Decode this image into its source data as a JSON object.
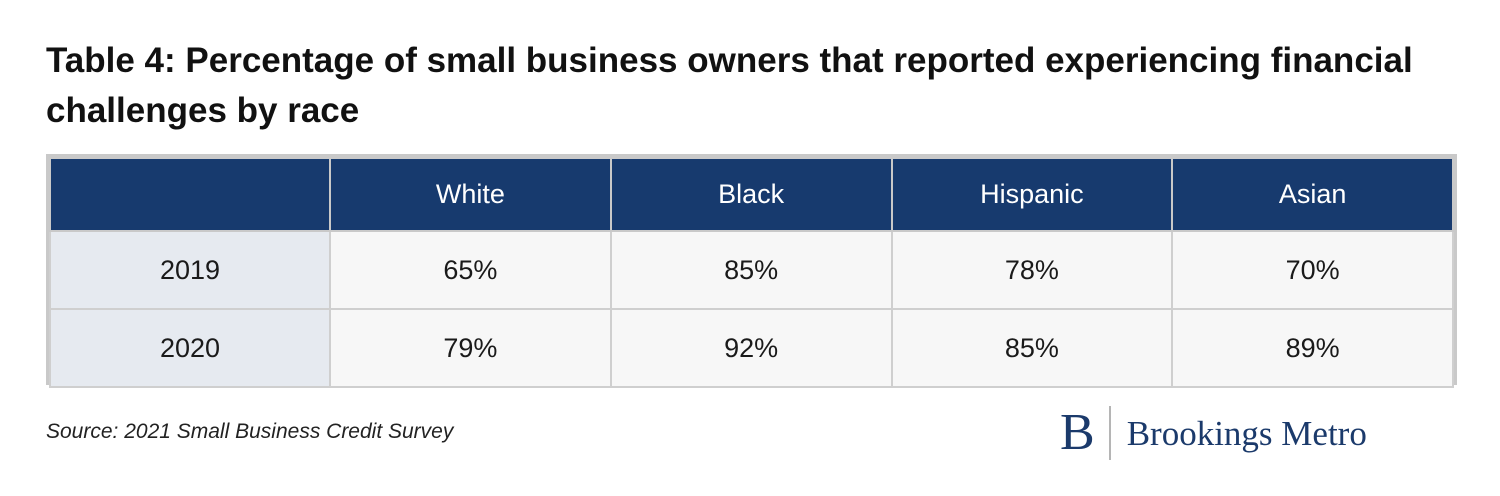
{
  "chart_data": {
    "type": "table",
    "title": "Table 4: Percentage of small business owners that reported experiencing financial challenges by race",
    "columns": [
      "",
      "White",
      "Black",
      "Hispanic",
      "Asian"
    ],
    "rows": [
      {
        "label": "2019",
        "values": [
          "65%",
          "85%",
          "78%",
          "70%"
        ]
      },
      {
        "label": "2020",
        "values": [
          "79%",
          "92%",
          "85%",
          "89%"
        ]
      }
    ],
    "header_color": "#173a6e",
    "row_label_color": "#e6eaf0"
  },
  "footer": {
    "source": "Source: 2021 Small Business Credit Survey",
    "brand_mark": "B",
    "brand_name": "Brookings Metro",
    "brand_color": "#1b3a6b"
  }
}
